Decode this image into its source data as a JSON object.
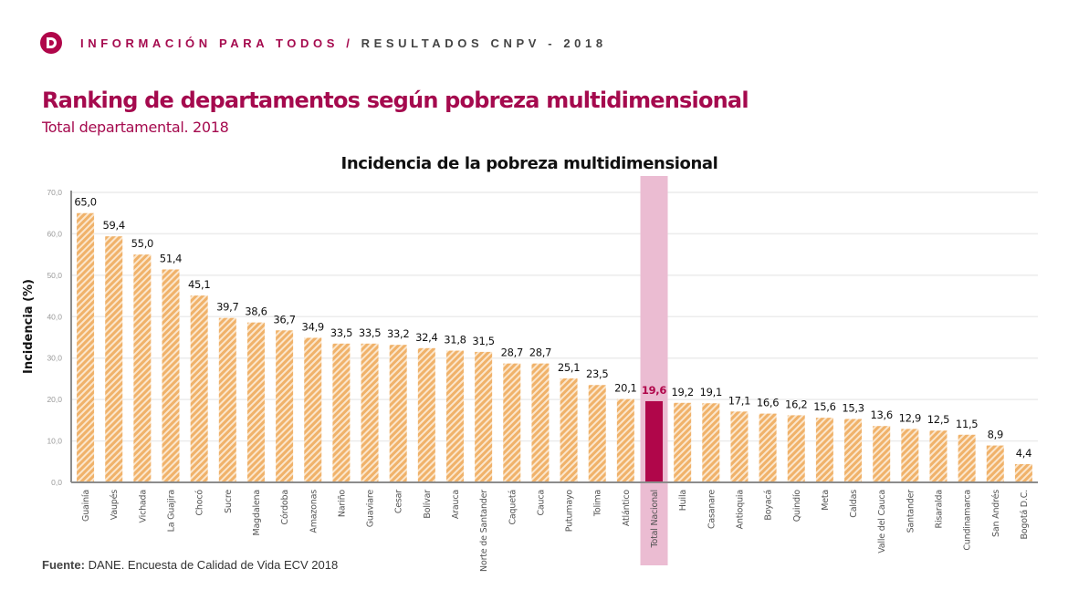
{
  "header": {
    "section": "INFORMACIÓN PARA TODOS",
    "separator": "/",
    "subsection": "RESULTADOS CNPV - 2018",
    "logo_icon": "dane-d-logo-icon"
  },
  "page_title": "Ranking de departamentos según pobreza multidimensional",
  "page_subtitle": "Total departamental. 2018",
  "footer": {
    "label": "Fuente:",
    "text": "DANE. Encuesta de Calidad de Vida ECV 2018"
  },
  "colors": {
    "brand": "#a50a4e",
    "bar": "#f0b26a",
    "highlight_bar": "#b0064a",
    "highlight_band": "#ebbcd2"
  },
  "chart_data": {
    "type": "bar",
    "title": "Incidencia de la pobreza multidimensional",
    "xlabel": "",
    "ylabel": "Incidencia (%)",
    "ylim": [
      0,
      70
    ],
    "yticks": [
      "0,0",
      "10,0",
      "20,0",
      "30,0",
      "40,0",
      "50,0",
      "60,0",
      "70,0"
    ],
    "grid": true,
    "highlight_category": "Total Nacional",
    "categories": [
      "Guainía",
      "Vaupés",
      "Vichada",
      "La Guajira",
      "Chocó",
      "Sucre",
      "Magdalena",
      "Córdoba",
      "Amazonas",
      "Nariño",
      "Guaviare",
      "Cesar",
      "Bolívar",
      "Arauca",
      "Norte de Santander",
      "Caquetá",
      "Cauca",
      "Putumayo",
      "Tolima",
      "Atlántico",
      "Total Nacional",
      "Huila",
      "Casanare",
      "Antioquia",
      "Boyacá",
      "Quindío",
      "Meta",
      "Caldas",
      "Valle del Cauca",
      "Santander",
      "Risaralda",
      "Cundinamarca",
      "San Andrés",
      "Bogotá D.C."
    ],
    "values": [
      65.0,
      59.4,
      55.0,
      51.4,
      45.1,
      39.7,
      38.6,
      36.7,
      34.9,
      33.5,
      33.5,
      33.2,
      32.4,
      31.8,
      31.5,
      28.7,
      28.7,
      25.1,
      23.5,
      20.1,
      19.6,
      19.2,
      19.1,
      17.1,
      16.6,
      16.2,
      15.6,
      15.3,
      13.6,
      12.9,
      12.5,
      11.5,
      8.9,
      4.4
    ],
    "labels": [
      "65,0",
      "59,4",
      "55,0",
      "51,4",
      "45,1",
      "39,7",
      "38,6",
      "36,7",
      "34,9",
      "33,5",
      "33,5",
      "33,2",
      "32,4",
      "31,8",
      "31,5",
      "28,7",
      "28,7",
      "25,1",
      "23,5",
      "20,1",
      "19,6",
      "19,2",
      "19,1",
      "17,1",
      "16,6",
      "16,2",
      "15,6",
      "15,3",
      "13,6",
      "12,9",
      "12,5",
      "11,5",
      "8,9",
      "4,4"
    ]
  }
}
